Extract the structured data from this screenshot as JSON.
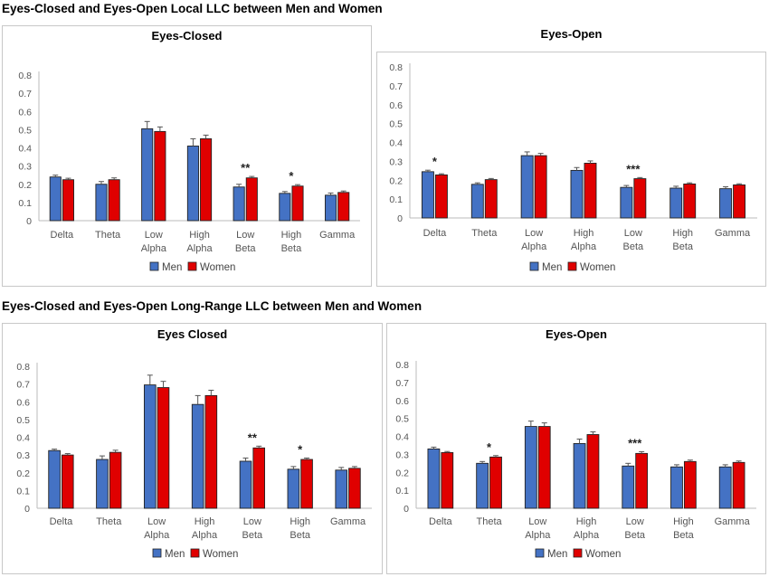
{
  "sections": {
    "local_title": "Eyes-Closed and Eyes-Open Local LLC between Men and Women",
    "long_title": "Eyes-Closed and Eyes-Open Long-Range LLC between Men and Women"
  },
  "colors": {
    "men": "#4472C4",
    "women": "#E00000",
    "error": "#555555"
  },
  "chart_data": [
    {
      "type": "bar",
      "title": "Eyes-Closed",
      "categories": [
        [
          "Delta"
        ],
        [
          "Theta"
        ],
        [
          "Low",
          "Alpha"
        ],
        [
          "High",
          "Alpha"
        ],
        [
          "Low",
          "Beta"
        ],
        [
          "High",
          "Beta"
        ],
        [
          "Gamma"
        ]
      ],
      "ylim": [
        0,
        0.8
      ],
      "yticks": [
        "0",
        "0.1",
        "0.2",
        "0.3",
        "0.4",
        "0.5",
        "0.6",
        "0.7",
        "0.8"
      ],
      "series": [
        {
          "name": "Men",
          "values": [
            0.24,
            0.2,
            0.505,
            0.41,
            0.185,
            0.15,
            0.14
          ],
          "errors": [
            0.01,
            0.015,
            0.04,
            0.04,
            0.015,
            0.01,
            0.012
          ]
        },
        {
          "name": "Women",
          "values": [
            0.225,
            0.225,
            0.49,
            0.45,
            0.235,
            0.19,
            0.155
          ],
          "errors": [
            0.008,
            0.01,
            0.025,
            0.02,
            0.008,
            0.008,
            0.008
          ]
        }
      ],
      "annotations": [
        "",
        "",
        "",
        "",
        "**",
        "*",
        ""
      ]
    },
    {
      "type": "bar",
      "title": "Eyes-Open",
      "categories": [
        [
          "Delta"
        ],
        [
          "Theta"
        ],
        [
          "Low",
          "Alpha"
        ],
        [
          "High",
          "Alpha"
        ],
        [
          "Low",
          "Beta"
        ],
        [
          "High",
          "Beta"
        ],
        [
          "Gamma"
        ]
      ],
      "ylim": [
        0,
        0.8
      ],
      "yticks": [
        "0",
        "0.1",
        "0.2",
        "0.3",
        "0.4",
        "0.5",
        "0.6",
        "0.7",
        "0.8"
      ],
      "series": [
        {
          "name": "Men",
          "values": [
            0.245,
            0.178,
            0.33,
            0.252,
            0.162,
            0.158,
            0.155
          ],
          "errors": [
            0.008,
            0.008,
            0.02,
            0.015,
            0.01,
            0.01,
            0.01
          ]
        },
        {
          "name": "Women",
          "values": [
            0.228,
            0.203,
            0.33,
            0.29,
            0.208,
            0.18,
            0.175
          ],
          "errors": [
            0.006,
            0.006,
            0.012,
            0.012,
            0.006,
            0.006,
            0.006
          ]
        }
      ],
      "annotations": [
        "*",
        "",
        "",
        "",
        "***",
        "",
        ""
      ]
    },
    {
      "type": "bar",
      "title": "Eyes Closed",
      "categories": [
        [
          "Delta"
        ],
        [
          "Theta"
        ],
        [
          "Low",
          "Alpha"
        ],
        [
          "High",
          "Alpha"
        ],
        [
          "Low",
          "Beta"
        ],
        [
          "High",
          "Beta"
        ],
        [
          "Gamma"
        ]
      ],
      "ylim": [
        0,
        0.8
      ],
      "yticks": [
        "0",
        "0.1",
        "0.2",
        "0.3",
        "0.4",
        "0.5",
        "0.6",
        "0.7",
        "0.8"
      ],
      "series": [
        {
          "name": "Men",
          "values": [
            0.325,
            0.275,
            0.695,
            0.585,
            0.265,
            0.22,
            0.215
          ],
          "errors": [
            0.008,
            0.02,
            0.055,
            0.05,
            0.018,
            0.015,
            0.015
          ]
        },
        {
          "name": "Women",
          "values": [
            0.3,
            0.315,
            0.68,
            0.635,
            0.34,
            0.275,
            0.225
          ],
          "errors": [
            0.008,
            0.012,
            0.035,
            0.03,
            0.01,
            0.008,
            0.01
          ]
        }
      ],
      "annotations": [
        "",
        "",
        "",
        "",
        "**",
        "*",
        ""
      ]
    },
    {
      "type": "bar",
      "title": "Eyes-Open",
      "categories": [
        [
          "Delta"
        ],
        [
          "Theta"
        ],
        [
          "Low",
          "Alpha"
        ],
        [
          "High",
          "Alpha"
        ],
        [
          "Low",
          "Beta"
        ],
        [
          "High",
          "Beta"
        ],
        [
          "Gamma"
        ]
      ],
      "ylim": [
        0,
        0.8
      ],
      "yticks": [
        "0",
        "0.1",
        "0.2",
        "0.3",
        "0.4",
        "0.5",
        "0.6",
        "0.7",
        "0.8"
      ],
      "series": [
        {
          "name": "Men",
          "values": [
            0.33,
            0.25,
            0.455,
            0.36,
            0.235,
            0.23,
            0.23
          ],
          "errors": [
            0.01,
            0.01,
            0.03,
            0.025,
            0.015,
            0.012,
            0.012
          ]
        },
        {
          "name": "Women",
          "values": [
            0.31,
            0.285,
            0.455,
            0.41,
            0.305,
            0.26,
            0.255
          ],
          "errors": [
            0.006,
            0.008,
            0.02,
            0.015,
            0.01,
            0.008,
            0.008
          ]
        }
      ],
      "annotations": [
        "",
        "*",
        "",
        "",
        "***",
        "",
        ""
      ]
    }
  ]
}
